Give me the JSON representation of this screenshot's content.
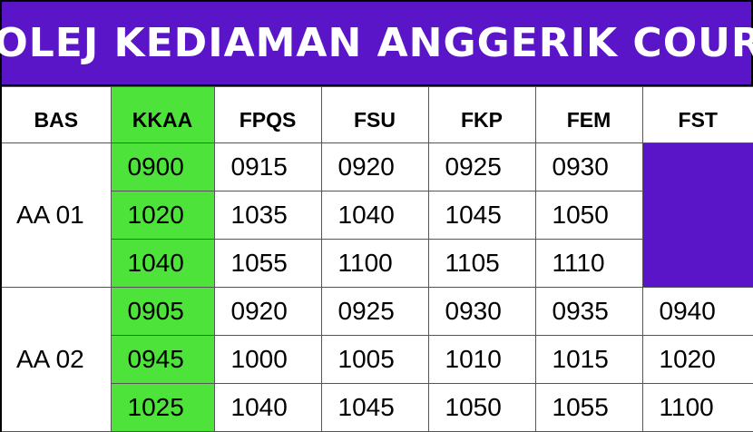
{
  "title": "KOLEJ KEDIAMAN ANGGERIK COURT",
  "colors": {
    "header_purple": "#5a15c9",
    "highlight_green": "#4de33b"
  },
  "columns": [
    "BAS",
    "KKAA",
    "FPQS",
    "FSU",
    "FKP",
    "FEM",
    "FST"
  ],
  "groups": [
    {
      "bus": "AA 01",
      "rows": [
        [
          "0900",
          "0915",
          "0920",
          "0925",
          "0930"
        ],
        [
          "1020",
          "1035",
          "1040",
          "1045",
          "1050"
        ],
        [
          "1040",
          "1055",
          "1100",
          "1105",
          "1110"
        ]
      ]
    },
    {
      "bus": "AA 02",
      "rows": [
        [
          "0905",
          "0920",
          "0925",
          "0930",
          "0935",
          "0940"
        ],
        [
          "0945",
          "1000",
          "1005",
          "1010",
          "1015",
          "1020"
        ],
        [
          "1025",
          "1040",
          "1045",
          "1050",
          "1055",
          "1100"
        ]
      ]
    }
  ]
}
